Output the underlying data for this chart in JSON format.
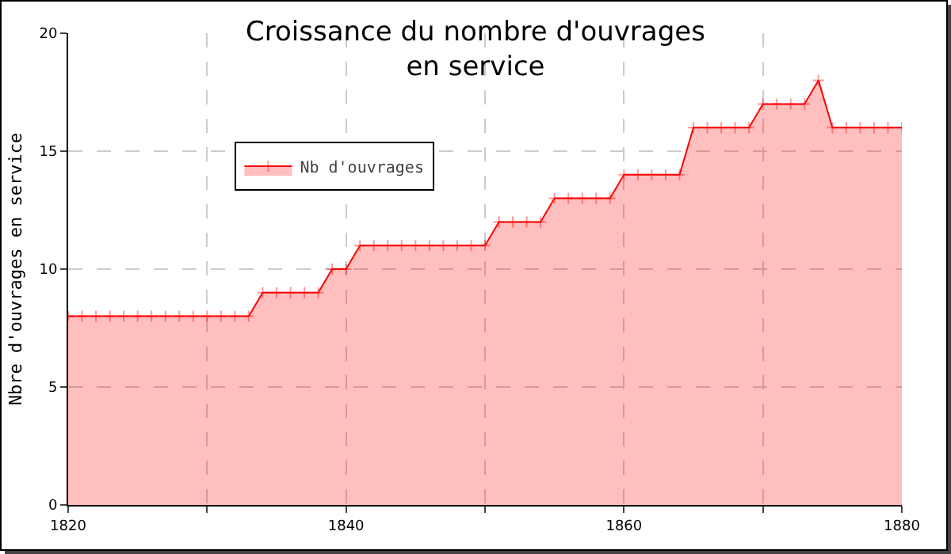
{
  "chart_data": {
    "type": "area",
    "title": "Croissance du nombre d'ouvrages\nen service",
    "ylabel": "Nbre d'ouvrages en service",
    "x": [
      1820,
      1821,
      1822,
      1823,
      1824,
      1825,
      1826,
      1827,
      1828,
      1829,
      1830,
      1831,
      1832,
      1833,
      1834,
      1835,
      1836,
      1837,
      1838,
      1839,
      1840,
      1841,
      1842,
      1843,
      1844,
      1845,
      1846,
      1847,
      1848,
      1849,
      1850,
      1851,
      1852,
      1853,
      1854,
      1855,
      1856,
      1857,
      1858,
      1859,
      1860,
      1861,
      1862,
      1863,
      1864,
      1865,
      1866,
      1867,
      1868,
      1869,
      1870,
      1871,
      1872,
      1873,
      1874,
      1875,
      1876,
      1877,
      1878,
      1879,
      1880
    ],
    "series": [
      {
        "name": "Nb d'ouvrages",
        "color": "#ff0000",
        "values": [
          8,
          8,
          8,
          8,
          8,
          8,
          8,
          8,
          8,
          8,
          8,
          8,
          8,
          8,
          9,
          9,
          9,
          9,
          9,
          10,
          10,
          11,
          11,
          11,
          11,
          11,
          11,
          11,
          11,
          11,
          11,
          12,
          12,
          12,
          12,
          13,
          13,
          13,
          13,
          13,
          14,
          14,
          14,
          14,
          14,
          16,
          16,
          16,
          16,
          16,
          17,
          17,
          17,
          17,
          18,
          16,
          16,
          16,
          16,
          16,
          16
        ]
      }
    ],
    "xlim": [
      1820,
      1880
    ],
    "xticks": [
      1820,
      {
        "value": 1830,
        "label": null
      },
      1840,
      {
        "value": 1850,
        "label": null
      },
      1860,
      {
        "value": 1870,
        "label": null
      },
      1880
    ],
    "ylim": [
      0,
      20
    ],
    "yticks": [
      0,
      5,
      10,
      15,
      20
    ],
    "grid": true,
    "legend": "top left",
    "marker": "cross",
    "line_style": "solid"
  }
}
